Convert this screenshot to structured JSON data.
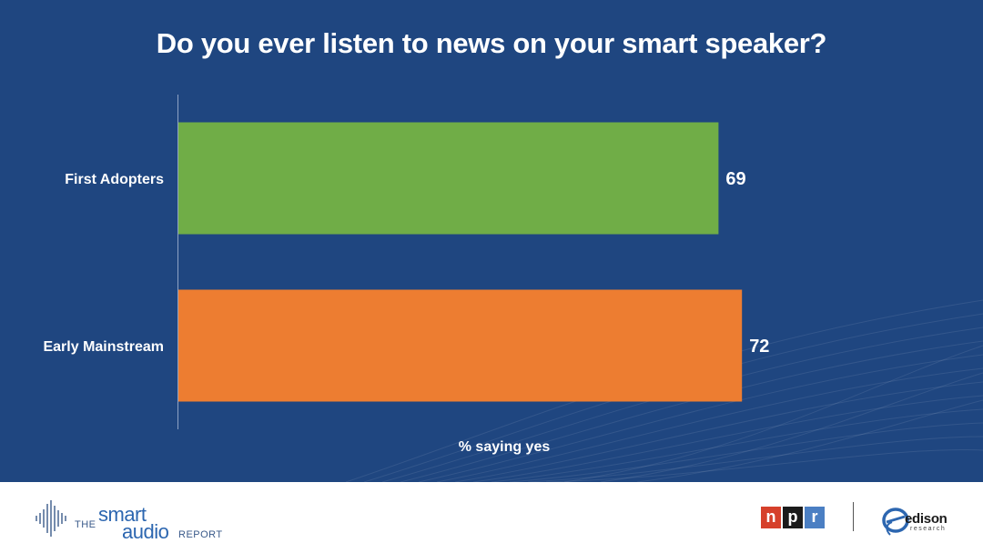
{
  "chart_data": {
    "type": "bar",
    "orientation": "horizontal",
    "title": "Do you ever listen to news on your smart speaker?",
    "xlabel": "% saying yes",
    "ylabel": "",
    "categories": [
      "First Adopters",
      "Early Mainstream"
    ],
    "values": [
      69,
      72
    ],
    "data_labels": [
      "69",
      "72"
    ],
    "bar_colors": [
      "#70ad47",
      "#ed7d31"
    ],
    "xlim": [
      0,
      100
    ],
    "grid": false,
    "legend": "none"
  },
  "colors": {
    "background": "#1f4680",
    "text": "#ffffff",
    "axis": "#8fa3c4"
  },
  "footer": {
    "smart_audio_logo": {
      "the": "THE",
      "smart": "smart",
      "audio": "audio",
      "report": "REPORT"
    },
    "npr_logo": [
      "n",
      "p",
      "r"
    ],
    "edison_logo": {
      "name": "edison",
      "sub": "research"
    }
  }
}
